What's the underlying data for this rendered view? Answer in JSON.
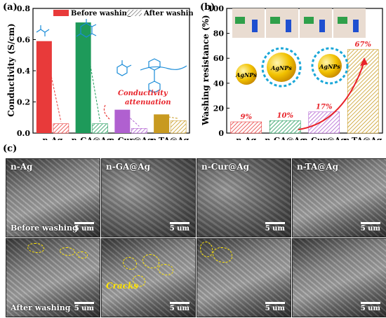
{
  "panel_a": {
    "label": "(a)",
    "ylabel": "Conductivity (S/cm)",
    "legend": [
      "Before washing",
      "After washing"
    ],
    "annotation": "Conductivity attenuation",
    "chart_data": {
      "type": "bar",
      "categories": [
        "n-Ag",
        "n-GA@Ag",
        "n-Cur@Ag",
        "n-TA@Ag"
      ],
      "series": [
        {
          "name": "Before washing",
          "values": [
            0.59,
            0.71,
            0.15,
            0.12
          ]
        },
        {
          "name": "After washing",
          "values": [
            0.06,
            0.06,
            0.03,
            0.08
          ]
        }
      ],
      "ylim": [
        0.0,
        0.8
      ],
      "yticks": [
        0.0,
        0.2,
        0.4,
        0.6,
        0.8
      ],
      "colors": [
        "#e83a3a",
        "#1e9a5a",
        "#b060d0",
        "#c89a20"
      ]
    }
  },
  "panel_b": {
    "label": "(b)",
    "ylabel": "Washing resistance (%)",
    "particle_text": "AgNPs",
    "chart_data": {
      "type": "bar",
      "categories": [
        "n-Ag",
        "n-GA@Ag",
        "n-Cur@Ag",
        "n-TA@Ag"
      ],
      "values": [
        9,
        10,
        17,
        67
      ],
      "value_labels": [
        "9%",
        "10%",
        "17%",
        "67%"
      ],
      "ylim": [
        0,
        100
      ],
      "yticks": [
        0,
        20,
        40,
        60,
        80,
        100
      ],
      "colors": [
        "#e83a3a",
        "#1e9a5a",
        "#b060d0",
        "#c89a20"
      ]
    }
  },
  "panel_c": {
    "label": "(c)",
    "columns": [
      "n-Ag",
      "n-GA@Ag",
      "n-Cur@Ag",
      "n-TA@Ag"
    ],
    "rows": [
      "Before washing",
      "After washing"
    ],
    "scale": "5 um",
    "cracks_label": "Cracks"
  }
}
